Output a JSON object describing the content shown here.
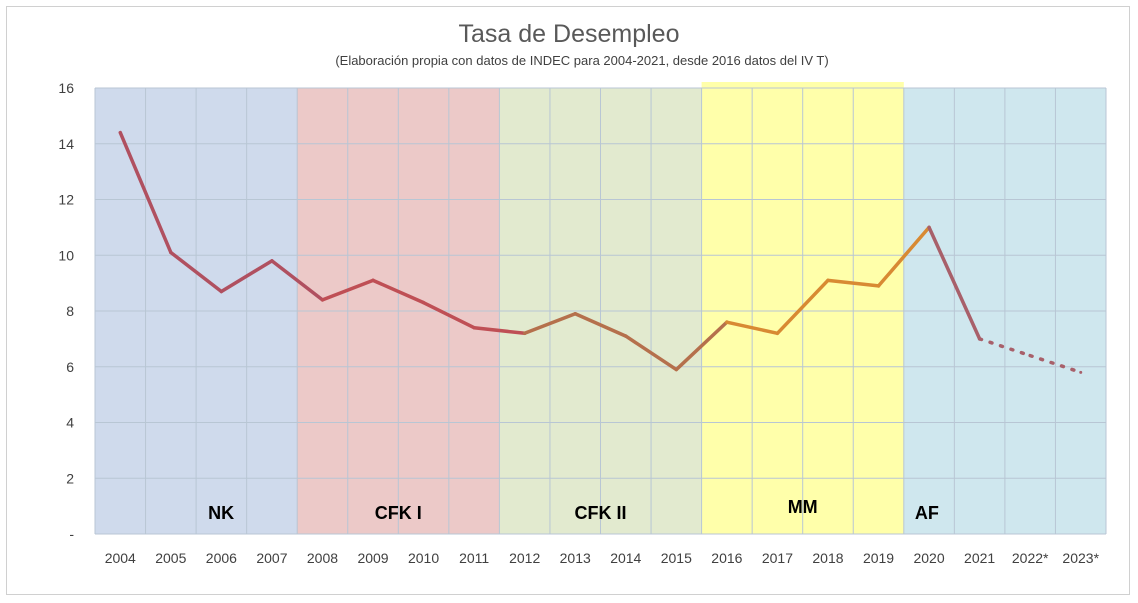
{
  "chart_data": {
    "type": "line",
    "title": "Tasa de Desempleo",
    "subtitle": "(Elaboración propia con datos de INDEC para 2004-2021, desde 2016 datos del IV T)",
    "categories": [
      "2004",
      "2005",
      "2006",
      "2007",
      "2008",
      "2009",
      "2010",
      "2011",
      "2012",
      "2013",
      "2014",
      "2015",
      "2016",
      "2017",
      "2018",
      "2019",
      "2020",
      "2021",
      "2022*",
      "2023*"
    ],
    "y_ticks": [
      "-",
      "2",
      "4",
      "6",
      "8",
      "10",
      "12",
      "14",
      "16"
    ],
    "ylim": [
      0,
      16
    ],
    "grid": true,
    "series": [
      {
        "values": [
          14.4,
          10.1,
          8.7,
          9.8,
          8.4,
          9.1,
          8.3,
          7.4,
          7.2,
          7.9,
          7.1,
          5.9,
          7.6,
          7.2,
          9.1,
          8.9,
          11.0,
          7.0,
          6.4,
          5.8
        ]
      }
    ],
    "projected_from": "2021",
    "periods": [
      {
        "label": "NK",
        "from": "2004",
        "to": "2007",
        "color": "#cfdaec",
        "line_color": "#b05060"
      },
      {
        "label": "CFK I",
        "from": "2008",
        "to": "2011",
        "color": "#ecc9c8",
        "line_color": "#bf4f55"
      },
      {
        "label": "CFK II",
        "from": "2012",
        "to": "2015",
        "color": "#e2eacf",
        "line_color": "#b5704c"
      },
      {
        "label": "MM",
        "from": "2016",
        "to": "2019",
        "color": "#ffffaa",
        "line_color": "#d88a33"
      },
      {
        "label": "AF",
        "from": "2020",
        "to": "2023*",
        "color": "#cfe7ee",
        "line_color": "#a8606a"
      }
    ]
  }
}
